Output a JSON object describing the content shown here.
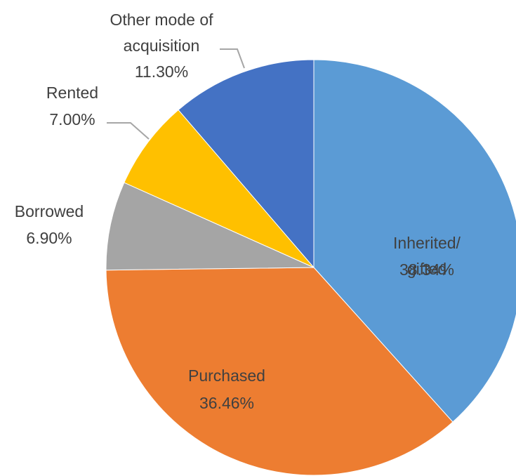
{
  "chart_data": {
    "type": "pie",
    "categories": [
      "Inherited/ gifted",
      "Purchased",
      "Borrowed",
      "Rented",
      "Other mode of acquisition"
    ],
    "values": [
      38.34,
      36.46,
      6.9,
      7.0,
      11.3
    ],
    "value_labels": [
      "38.34%",
      "36.46%",
      "6.90%",
      "7.00%",
      "11.30%"
    ],
    "colors": [
      "#5b9bd5",
      "#ed7d31",
      "#a5a5a5",
      "#ffc000",
      "#4472c4"
    ]
  }
}
